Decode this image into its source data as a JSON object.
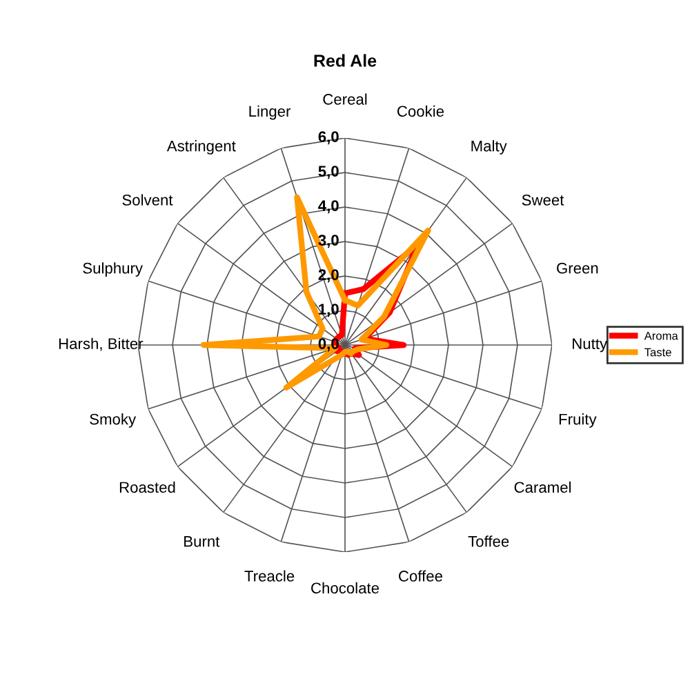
{
  "chart_data": {
    "type": "radar",
    "title": "Red Ale",
    "categories": [
      "Cereal",
      "Cookie",
      "Malty",
      "Sweet",
      "Green",
      "Nutty",
      "Fruity",
      "Caramel",
      "Toffee",
      "Coffee",
      "Chocolate",
      "Treacle",
      "Burnt",
      "Roasted",
      "Smoky",
      "Harsh, Bitter",
      "Sulphury",
      "Solvent",
      "Astringent",
      "Linger"
    ],
    "series": [
      {
        "name": "Aroma",
        "color": "#ff0000",
        "values": [
          1.5,
          1.7,
          3.6,
          1.6,
          0.6,
          1.7,
          0.3,
          0.5,
          0.3,
          0.3,
          0.2,
          0.3,
          0.2,
          0.3,
          0.2,
          0.3,
          0.3,
          0.3,
          0.3,
          0.3
        ]
      },
      {
        "name": "Taste",
        "color": "#ff9900",
        "values": [
          1.3,
          1.2,
          4.1,
          1.4,
          0.5,
          1.2,
          0.4,
          0.3,
          0.3,
          0.2,
          0.2,
          0.3,
          0.5,
          2.1,
          0.3,
          4.1,
          0.8,
          0.8,
          1.9,
          4.5
        ]
      }
    ],
    "ylim": [
      0,
      6
    ],
    "yticks": [
      {
        "value": 0,
        "label": "0,0"
      },
      {
        "value": 1,
        "label": "1,0"
      },
      {
        "value": 2,
        "label": "2,0"
      },
      {
        "value": 3,
        "label": "3,0"
      },
      {
        "value": 4,
        "label": "4,0"
      },
      {
        "value": 5,
        "label": "5,0"
      },
      {
        "value": 6,
        "label": "6,0"
      }
    ],
    "grid": true,
    "legend": "right"
  }
}
